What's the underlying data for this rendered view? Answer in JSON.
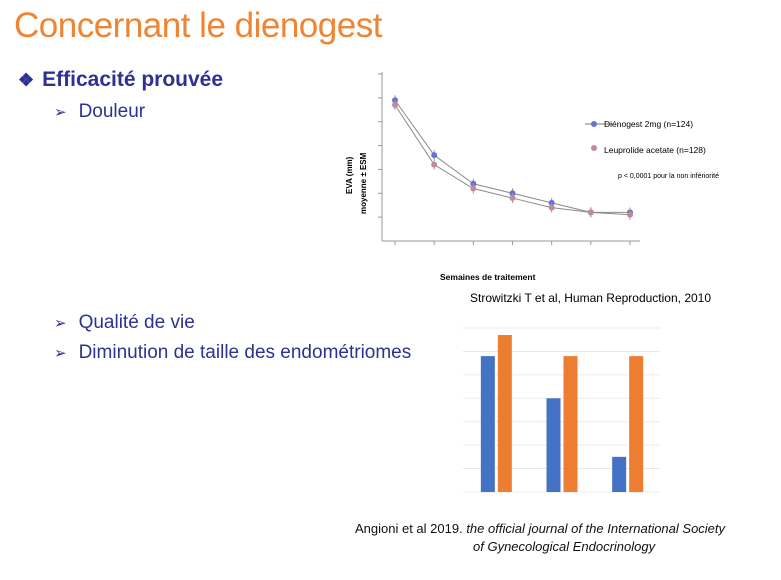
{
  "title": "Concernant le dienogest",
  "bullet_main": "Efficacité prouvée",
  "sub_items": {
    "douleur": "Douleur",
    "qualite": "Qualité de vie",
    "endometriomes": "Diminution de taille des endométriomes"
  },
  "colors": {
    "title": "#ef8534",
    "text": "#2e3192",
    "blue": "#4472c4",
    "orange": "#ed7d31",
    "pink": "#c18a9b",
    "purple": "#6c6fd6"
  },
  "chart_data": [
    {
      "type": "line",
      "ylabel_line1": "EVA (mm)",
      "ylabel_line2": "moyenne ± ESM",
      "xlabel": "Semaines de traitement",
      "ylim": [
        0,
        70
      ],
      "x": [
        0,
        1,
        2,
        3,
        4,
        5,
        6
      ],
      "series": [
        {
          "name": "Diénogest 2mg (n=124)",
          "values": [
            59,
            36,
            24,
            20,
            16,
            12,
            12
          ]
        },
        {
          "name": "Leuprolide acetate (n=128)",
          "values": [
            57,
            32,
            22,
            18,
            14,
            12,
            11
          ]
        }
      ],
      "annotation": "p < 0,0001 pour la non infériorité"
    },
    {
      "type": "bar",
      "categories": [
        "",
        "",
        ""
      ],
      "series": [
        {
          "name": "",
          "values": [
            58,
            40,
            15
          ]
        },
        {
          "name": "",
          "values": [
            67,
            58,
            58
          ]
        }
      ],
      "ylim": [
        0,
        70
      ]
    }
  ],
  "citation_1": "Strowitzki T et al, Human Reproduction, 2010",
  "citation_2_prefix": "Angioni et al 2019. ",
  "citation_2_italic_a": "the official journal of the International Society",
  "citation_2_italic_b": "of Gynecological Endocrinology"
}
